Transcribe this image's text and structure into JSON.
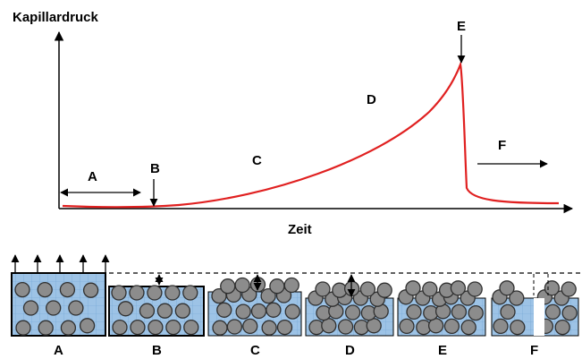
{
  "y_axis_label": "Kapillardruck",
  "x_axis_label": "Zeit",
  "curve_labels": [
    "A",
    "B",
    "C",
    "D",
    "E",
    "F"
  ],
  "panel_labels": [
    "A",
    "B",
    "C",
    "D",
    "E",
    "F"
  ]
}
